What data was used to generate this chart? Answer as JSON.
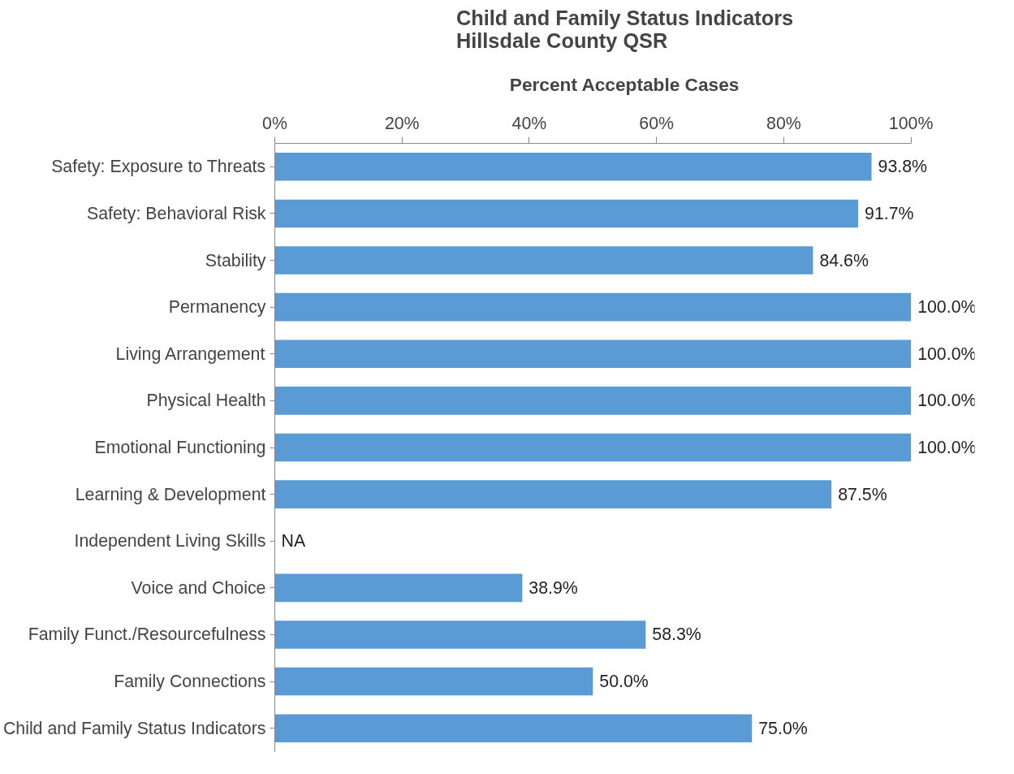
{
  "chart_data": {
    "type": "bar",
    "orientation": "horizontal",
    "title": "Child and Family Status Indicators\nHillsdale County QSR",
    "subtitle": "Percent Acceptable Cases",
    "categories": [
      "Safety: Exposure to Threats",
      "Safety: Behavioral Risk",
      "Stability",
      "Permanency",
      "Living Arrangement",
      "Physical Health",
      "Emotional Functioning",
      "Learning & Development",
      "Independent Living Skills",
      "Voice and Choice",
      "Family Funct./Resourcefulness",
      "Family Connections",
      "Child and Family Status Indicators"
    ],
    "values": [
      93.8,
      91.7,
      84.6,
      100.0,
      100.0,
      100.0,
      100.0,
      87.5,
      null,
      38.9,
      58.3,
      50.0,
      75.0
    ],
    "value_labels": [
      "93.8%",
      "91.7%",
      "84.6%",
      "100.0%",
      "100.0%",
      "100.0%",
      "100.0%",
      "87.5%",
      "NA",
      "38.9%",
      "58.3%",
      "50.0%",
      "75.0%"
    ],
    "color": "#5b9bd5",
    "xlim": [
      0,
      100
    ],
    "xticks": [
      {
        "value": 0,
        "label": "0%"
      },
      {
        "value": 20,
        "label": "20%"
      },
      {
        "value": 40,
        "label": "40%"
      },
      {
        "value": 60,
        "label": "60%"
      },
      {
        "value": 80,
        "label": "80%"
      },
      {
        "value": 100,
        "label": "100%"
      }
    ],
    "grid": false
  }
}
